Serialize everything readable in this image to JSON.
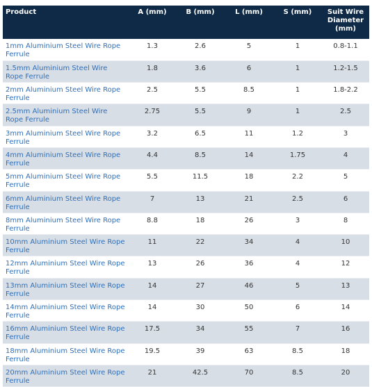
{
  "table": {
    "header": [
      "Product",
      "A (mm)",
      "B (mm)",
      "L (mm)",
      "S (mm)",
      "Suit Wire Diameter (mm)"
    ],
    "rows": [
      [
        "1mm Aluminium Steel Wire Rope Ferrule",
        "1.3",
        "2.6",
        "5",
        "1",
        "0.8-1.1"
      ],
      [
        "1.5mm Aluminium Steel Wire Rope Ferrule",
        "1.8",
        "3.6",
        "6",
        "1",
        "1.2-1.5"
      ],
      [
        "2mm Aluminium Steel Wire Rope Ferrule",
        "2.5",
        "5.5",
        "8.5",
        "1",
        "1.8-2.2"
      ],
      [
        "2.5mm Aluminium Steel Wire Rope Ferrule",
        "2.75",
        "5.5",
        "9",
        "1",
        "2.5"
      ],
      [
        "3mm Aluminium Steel Wire Rope Ferrule",
        "3.2",
        "6.5",
        "11",
        "1.2",
        "3"
      ],
      [
        "4mm Aluminium Steel Wire Rope Ferrule",
        "4.4",
        "8.5",
        "14",
        "1.75",
        "4"
      ],
      [
        "5mm Aluminium Steel Wire Rope Ferrule",
        "5.5",
        "11.5",
        "18",
        "2.2",
        "5"
      ],
      [
        "6mm Aluminium Steel Wire Rope Ferrule",
        "7",
        "13",
        "21",
        "2.5",
        "6"
      ],
      [
        "8mm Aluminium Steel Wire Rope Ferrule",
        "8.8",
        "18",
        "26",
        "3",
        "8"
      ],
      [
        "10mm Aluminium Steel Wire Rope Ferrule",
        "11",
        "22",
        "34",
        "4",
        "10"
      ],
      [
        "12mm Aluminium Steel Wire Rope Ferrule",
        "13",
        "26",
        "36",
        "4",
        "12"
      ],
      [
        "13mm Aluminium Steel Wire Rope Ferrule",
        "14",
        "27",
        "46",
        "5",
        "13"
      ],
      [
        "14mm Aluminium Steel Wire Rope Ferrule",
        "14",
        "30",
        "50",
        "6",
        "14"
      ],
      [
        "16mm Aluminium Steel Wire Rope Ferrule",
        "17.5",
        "34",
        "55",
        "7",
        "16"
      ],
      [
        "18mm Aluminium Steel Wire Rope Ferrule",
        "19.5",
        "39",
        "63",
        "8.5",
        "18"
      ],
      [
        "20mm Aluminium Steel Wire Rope Ferrule",
        "21",
        "42.5",
        "70",
        "8.5",
        "20"
      ]
    ]
  }
}
